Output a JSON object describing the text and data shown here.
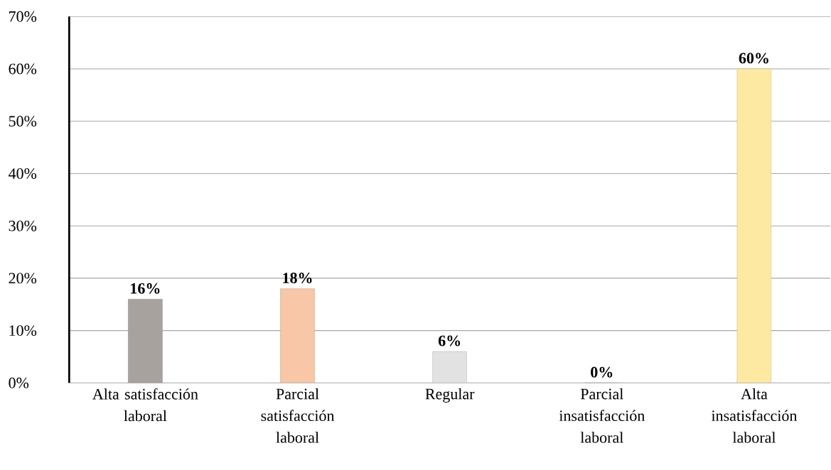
{
  "chart_data": {
    "type": "bar",
    "categories": [
      "Alta satisfacción laboral",
      "Parcial satisfacción laboral",
      "Regular",
      "Parcial insatisfacción laboral",
      "Alta insatisfacción laboral"
    ],
    "values": [
      16,
      18,
      6,
      0,
      60
    ],
    "colors": [
      "#a8a29f",
      "#f7c7a8",
      "#e2e2e2",
      "#c9c9c9",
      "#fde9a2"
    ],
    "value_labels": [
      "16%",
      "18%",
      "6%",
      "0%",
      "60%"
    ],
    "ylim": [
      0,
      70
    ],
    "yticks": [
      {
        "value": 0,
        "label": "0%"
      },
      {
        "value": 10,
        "label": "10%"
      },
      {
        "value": 20,
        "label": "20%"
      },
      {
        "value": 30,
        "label": "30%"
      },
      {
        "value": 40,
        "label": "40%"
      },
      {
        "value": 50,
        "label": "50%"
      },
      {
        "value": 60,
        "label": "60%"
      },
      {
        "value": 70,
        "label": "70%"
      }
    ],
    "grid": "y"
  }
}
